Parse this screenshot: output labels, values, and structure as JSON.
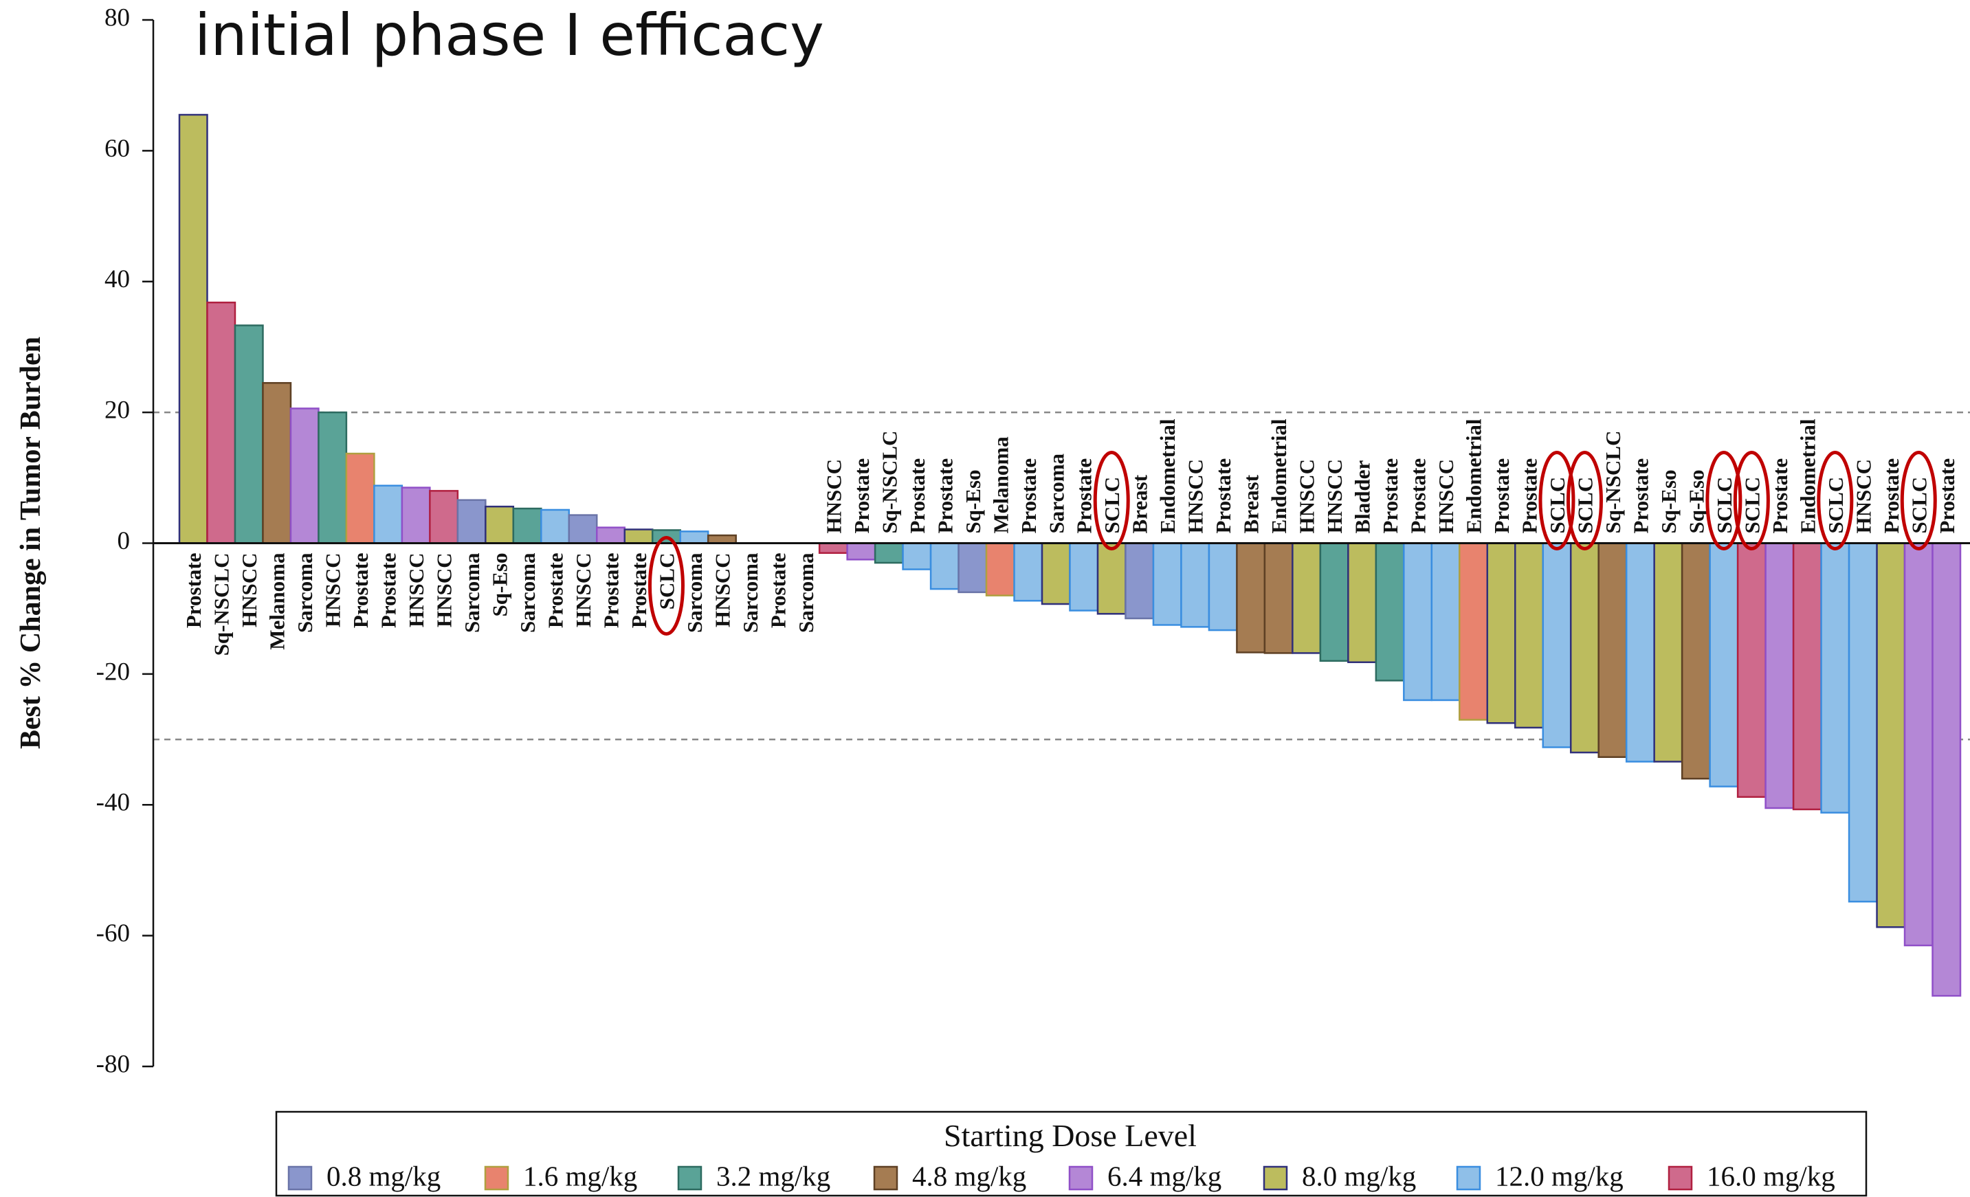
{
  "chart_data": {
    "type": "bar",
    "title": "initial phase I efficacy",
    "ylabel": "Best % Change in Tumor Burden",
    "legend_title": "Starting Dose Level",
    "legend": "bottom",
    "ylim": [
      -80,
      80
    ],
    "yticks": [
      -80,
      -60,
      -40,
      -20,
      0,
      20,
      40,
      60,
      80
    ],
    "reference_lines": [
      20,
      -30
    ],
    "highlight": [
      17,
      33,
      49,
      50,
      55,
      56,
      59,
      62
    ],
    "highlight_color": "#c00000",
    "categories": [
      "Prostate",
      "Sq-NSCLC",
      "HNSCC",
      "Melanoma",
      "Sarcoma",
      "HNSCC",
      "Prostate",
      "Prostate",
      "HNSCC",
      "HNSCC",
      "Sarcoma",
      "Sq-Eso",
      "Sarcoma",
      "Prostate",
      "HNSCC",
      "Prostate",
      "Prostate",
      "SCLC",
      "Sarcoma",
      "HNSCC",
      "Sarcoma",
      "Prostate",
      "Sarcoma",
      "HNSCC",
      "Prostate",
      "Sq-NSCLC",
      "Prostate",
      "Prostate",
      "Sq-Eso",
      "Melanoma",
      "Prostate",
      "Sarcoma",
      "Prostate",
      "SCLC",
      "Breast",
      "Endometrial",
      "HNSCC",
      "Prostate",
      "Breast",
      "Endometrial",
      "HNSCC",
      "HNSCC",
      "Bladder",
      "Prostate",
      "Prostate",
      "HNSCC",
      "Endometrial",
      "Prostate",
      "Prostate",
      "SCLC",
      "SCLC",
      "Sq-NSCLC",
      "Prostate",
      "Sq-Eso",
      "Sq-Eso",
      "SCLC",
      "SCLC",
      "Prostate",
      "Endometrial",
      "SCLC",
      "HNSCC",
      "Prostate",
      "SCLC",
      "Prostate"
    ],
    "series": [
      {
        "name": "0.8 mg/kg",
        "color": "#8a96cc",
        "edgecolor": "#6a74a8",
        "values": [
          null,
          null,
          null,
          null,
          null,
          null,
          null,
          null,
          null,
          null,
          6.6,
          null,
          null,
          null,
          4.3,
          null,
          null,
          null,
          null,
          null,
          null,
          null,
          null,
          null,
          null,
          null,
          null,
          null,
          -7.5,
          null,
          null,
          null,
          null,
          null,
          -11.5,
          null,
          null,
          null,
          null,
          null,
          null,
          null,
          null,
          null,
          null,
          null,
          null,
          null,
          null,
          null,
          null,
          null,
          null,
          null,
          null,
          null,
          null,
          null,
          null,
          null,
          null,
          null,
          null,
          null
        ]
      },
      {
        "name": "1.6 mg/kg",
        "color": "#e8836e",
        "edgecolor": "#b0a040",
        "values": [
          null,
          null,
          null,
          null,
          null,
          null,
          13.7,
          null,
          null,
          null,
          null,
          null,
          null,
          null,
          null,
          null,
          null,
          null,
          null,
          null,
          null,
          null,
          null,
          null,
          null,
          null,
          null,
          null,
          null,
          -8.0,
          null,
          null,
          null,
          null,
          null,
          null,
          null,
          null,
          null,
          null,
          null,
          null,
          null,
          null,
          null,
          null,
          -27.0,
          null,
          null,
          null,
          null,
          null,
          null,
          null,
          null,
          null,
          null,
          null,
          null,
          null,
          null,
          null,
          null,
          null
        ]
      },
      {
        "name": "3.2 mg/kg",
        "color": "#5aa397",
        "edgecolor": "#2d6b60",
        "values": [
          null,
          null,
          33.3,
          null,
          null,
          20.0,
          null,
          null,
          null,
          null,
          null,
          null,
          5.3,
          null,
          null,
          null,
          null,
          2.0,
          null,
          null,
          null,
          null,
          null,
          null,
          null,
          -3.0,
          null,
          null,
          null,
          null,
          null,
          null,
          null,
          null,
          null,
          null,
          null,
          null,
          null,
          null,
          null,
          -18.0,
          null,
          -21.0,
          null,
          null,
          null,
          null,
          null,
          null,
          null,
          null,
          null,
          null,
          null,
          null,
          null,
          null,
          null,
          null,
          null,
          null,
          null,
          null
        ]
      },
      {
        "name": "4.8 mg/kg",
        "color": "#a57c52",
        "edgecolor": "#5e4024",
        "values": [
          null,
          null,
          null,
          24.5,
          null,
          null,
          null,
          null,
          null,
          null,
          null,
          null,
          null,
          null,
          null,
          null,
          null,
          null,
          null,
          1.2,
          null,
          null,
          null,
          null,
          null,
          null,
          null,
          null,
          null,
          null,
          null,
          null,
          null,
          null,
          null,
          null,
          null,
          null,
          -16.7,
          -16.8,
          null,
          null,
          null,
          null,
          null,
          null,
          null,
          null,
          null,
          null,
          null,
          -32.7,
          null,
          null,
          -36.0,
          null,
          null,
          null,
          null,
          null,
          null,
          null,
          null,
          null
        ]
      },
      {
        "name": "6.4 mg/kg",
        "color": "#b487d6",
        "edgecolor": "#9050c8",
        "values": [
          null,
          null,
          null,
          null,
          20.6,
          null,
          null,
          null,
          8.5,
          null,
          null,
          null,
          null,
          null,
          null,
          2.4,
          null,
          null,
          null,
          null,
          null,
          null,
          null,
          null,
          -2.5,
          null,
          null,
          null,
          null,
          null,
          null,
          null,
          null,
          null,
          null,
          null,
          null,
          null,
          null,
          null,
          null,
          null,
          null,
          null,
          null,
          null,
          null,
          null,
          null,
          null,
          null,
          null,
          null,
          null,
          null,
          null,
          null,
          -40.5,
          null,
          null,
          null,
          null,
          -61.5,
          -69.2
        ]
      },
      {
        "name": "8.0 mg/kg",
        "color": "#bcbc5e",
        "edgecolor": "#30307a",
        "values": [
          65.5,
          null,
          null,
          null,
          null,
          null,
          null,
          null,
          null,
          null,
          null,
          5.6,
          null,
          null,
          null,
          null,
          2.1,
          null,
          null,
          null,
          null,
          null,
          null,
          null,
          null,
          null,
          null,
          null,
          null,
          null,
          null,
          -9.3,
          null,
          -10.8,
          null,
          null,
          null,
          null,
          null,
          null,
          -16.8,
          null,
          -18.2,
          null,
          null,
          null,
          null,
          -27.5,
          -28.2,
          null,
          -32.0,
          null,
          null,
          -33.4,
          null,
          null,
          null,
          null,
          null,
          null,
          null,
          -58.7,
          null,
          null
        ]
      },
      {
        "name": "12.0 mg/kg",
        "color": "#8fbfe8",
        "edgecolor": "#3a8ee0",
        "values": [
          null,
          null,
          null,
          null,
          null,
          null,
          null,
          8.8,
          null,
          null,
          null,
          null,
          null,
          5.1,
          null,
          null,
          null,
          null,
          1.8,
          null,
          null,
          null,
          null,
          null,
          null,
          null,
          -4.0,
          -7.0,
          null,
          null,
          -8.8,
          null,
          -10.3,
          null,
          null,
          -12.5,
          -12.8,
          -13.3,
          null,
          null,
          null,
          null,
          null,
          null,
          -24.0,
          -24.0,
          null,
          null,
          null,
          -31.2,
          null,
          null,
          -33.4,
          null,
          null,
          -37.2,
          null,
          null,
          null,
          -41.2,
          -54.8,
          null,
          null,
          null
        ]
      },
      {
        "name": "16.0 mg/kg",
        "color": "#cf6a8c",
        "edgecolor": "#b02040",
        "values": [
          null,
          36.8,
          null,
          null,
          null,
          null,
          null,
          null,
          null,
          8.0,
          null,
          null,
          null,
          null,
          null,
          null,
          null,
          null,
          null,
          null,
          null,
          null,
          null,
          -1.5,
          null,
          null,
          null,
          null,
          null,
          null,
          null,
          null,
          null,
          null,
          null,
          null,
          null,
          null,
          null,
          null,
          null,
          null,
          null,
          null,
          null,
          null,
          null,
          null,
          null,
          null,
          null,
          null,
          null,
          null,
          null,
          null,
          -38.8,
          null,
          -40.7,
          null,
          null,
          null,
          null,
          null
        ]
      }
    ]
  }
}
